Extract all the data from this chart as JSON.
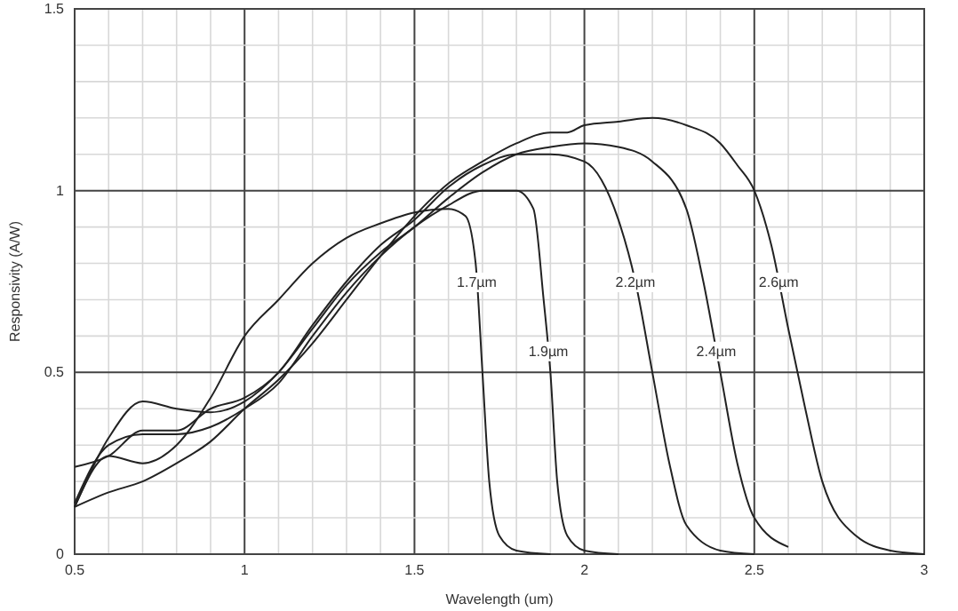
{
  "chart_data": {
    "type": "line",
    "xlabel": "Wavelength (um)",
    "ylabel": "Responsivity (A/W)",
    "xlim": [
      0.5,
      3
    ],
    "ylim": [
      0,
      1.5
    ],
    "xticks": [
      0.5,
      {
        "value": 0.6,
        "label": null
      },
      {
        "value": 0.7,
        "label": null
      },
      {
        "value": 0.8,
        "label": null
      },
      {
        "value": 0.9,
        "label": null
      },
      1,
      {
        "value": 1.1,
        "label": null
      },
      {
        "value": 1.2,
        "label": null
      },
      {
        "value": 1.3,
        "label": null
      },
      {
        "value": 1.4,
        "label": null
      },
      1.5,
      {
        "value": 1.6,
        "label": null
      },
      {
        "value": 1.7,
        "label": null
      },
      {
        "value": 1.8,
        "label": null
      },
      {
        "value": 1.9,
        "label": null
      },
      2,
      {
        "value": 2.1,
        "label": null
      },
      {
        "value": 2.2,
        "label": null
      },
      {
        "value": 2.3,
        "label": null
      },
      {
        "value": 2.4,
        "label": null
      },
      2.5,
      {
        "value": 2.6,
        "label": null
      },
      {
        "value": 2.7,
        "label": null
      },
      {
        "value": 2.8,
        "label": null
      },
      {
        "value": 2.9,
        "label": null
      },
      3
    ],
    "yticks": [
      0,
      {
        "value": 0.1,
        "label": null
      },
      {
        "value": 0.2,
        "label": null
      },
      {
        "value": 0.3,
        "label": null
      },
      {
        "value": 0.4,
        "label": null
      },
      0.5,
      {
        "value": 0.6,
        "label": null
      },
      {
        "value": 0.7,
        "label": null
      },
      {
        "value": 0.8,
        "label": null
      },
      {
        "value": 0.9,
        "label": null
      },
      1,
      {
        "value": 1.1,
        "label": null
      },
      {
        "value": 1.2,
        "label": null
      },
      {
        "value": 1.3,
        "label": null
      },
      {
        "value": 1.4,
        "label": null
      },
      1.5
    ],
    "grid": true,
    "marker": "none",
    "line_style": "solid",
    "series": [
      {
        "name": "1.7µm",
        "color": "#222222",
        "x": [
          0.5,
          0.6,
          0.7,
          0.8,
          0.9,
          1.0,
          1.1,
          1.2,
          1.3,
          1.4,
          1.5,
          1.6,
          1.65,
          1.68,
          1.7,
          1.72,
          1.75,
          1.8,
          1.9
        ],
        "values": [
          0.13,
          0.27,
          0.25,
          0.3,
          0.43,
          0.6,
          0.7,
          0.8,
          0.87,
          0.91,
          0.94,
          0.95,
          0.93,
          0.8,
          0.5,
          0.2,
          0.05,
          0.01,
          0
        ]
      },
      {
        "name": "1.9µm",
        "color": "#222222",
        "x": [
          0.5,
          0.6,
          0.7,
          0.8,
          0.9,
          1.0,
          1.1,
          1.2,
          1.3,
          1.4,
          1.5,
          1.6,
          1.7,
          1.8,
          1.85,
          1.88,
          1.9,
          1.92,
          1.95,
          2.0,
          2.1
        ],
        "values": [
          0.14,
          0.3,
          0.33,
          0.33,
          0.35,
          0.4,
          0.47,
          0.6,
          0.72,
          0.82,
          0.9,
          0.96,
          1.0,
          1.0,
          0.95,
          0.7,
          0.5,
          0.2,
          0.05,
          0.01,
          0
        ]
      },
      {
        "name": "2.2µm",
        "color": "#222222",
        "x": [
          0.5,
          0.6,
          0.7,
          0.8,
          0.9,
          1.0,
          1.1,
          1.2,
          1.3,
          1.4,
          1.5,
          1.6,
          1.7,
          1.8,
          1.9,
          2.0,
          2.05,
          2.1,
          2.15,
          2.2,
          2.25,
          2.3,
          2.4,
          2.5
        ],
        "values": [
          0.24,
          0.27,
          0.34,
          0.34,
          0.4,
          0.43,
          0.5,
          0.63,
          0.75,
          0.85,
          0.92,
          1.01,
          1.07,
          1.1,
          1.1,
          1.08,
          1.03,
          0.92,
          0.75,
          0.5,
          0.25,
          0.08,
          0.01,
          0
        ]
      },
      {
        "name": "2.4µm",
        "color": "#222222",
        "x": [
          0.5,
          0.6,
          0.7,
          0.8,
          0.9,
          1.0,
          1.1,
          1.2,
          1.3,
          1.4,
          1.5,
          1.6,
          1.7,
          1.8,
          1.9,
          2.0,
          2.1,
          2.2,
          2.3,
          2.35,
          2.4,
          2.45,
          2.5,
          2.6
        ],
        "values": [
          0.13,
          0.32,
          0.42,
          0.4,
          0.39,
          0.42,
          0.5,
          0.62,
          0.74,
          0.83,
          0.9,
          0.98,
          1.05,
          1.1,
          1.12,
          1.13,
          1.12,
          1.08,
          0.95,
          0.75,
          0.5,
          0.25,
          0.1,
          0.02
        ]
      },
      {
        "name": "2.6µm",
        "color": "#222222",
        "x": [
          0.5,
          0.6,
          0.7,
          0.8,
          0.9,
          1.0,
          1.1,
          1.2,
          1.3,
          1.4,
          1.5,
          1.6,
          1.7,
          1.8,
          1.9,
          1.95,
          2.0,
          2.1,
          2.2,
          2.3,
          2.4,
          2.45,
          2.5,
          2.55,
          2.6,
          2.65,
          2.7,
          2.8,
          2.9,
          3.0
        ],
        "values": [
          0.13,
          0.17,
          0.2,
          0.25,
          0.31,
          0.4,
          0.48,
          0.58,
          0.7,
          0.82,
          0.93,
          1.02,
          1.08,
          1.13,
          1.16,
          1.16,
          1.18,
          1.19,
          1.2,
          1.18,
          1.13,
          1.07,
          1.0,
          0.85,
          0.62,
          0.4,
          0.2,
          0.05,
          0.01,
          0
        ]
      }
    ]
  }
}
